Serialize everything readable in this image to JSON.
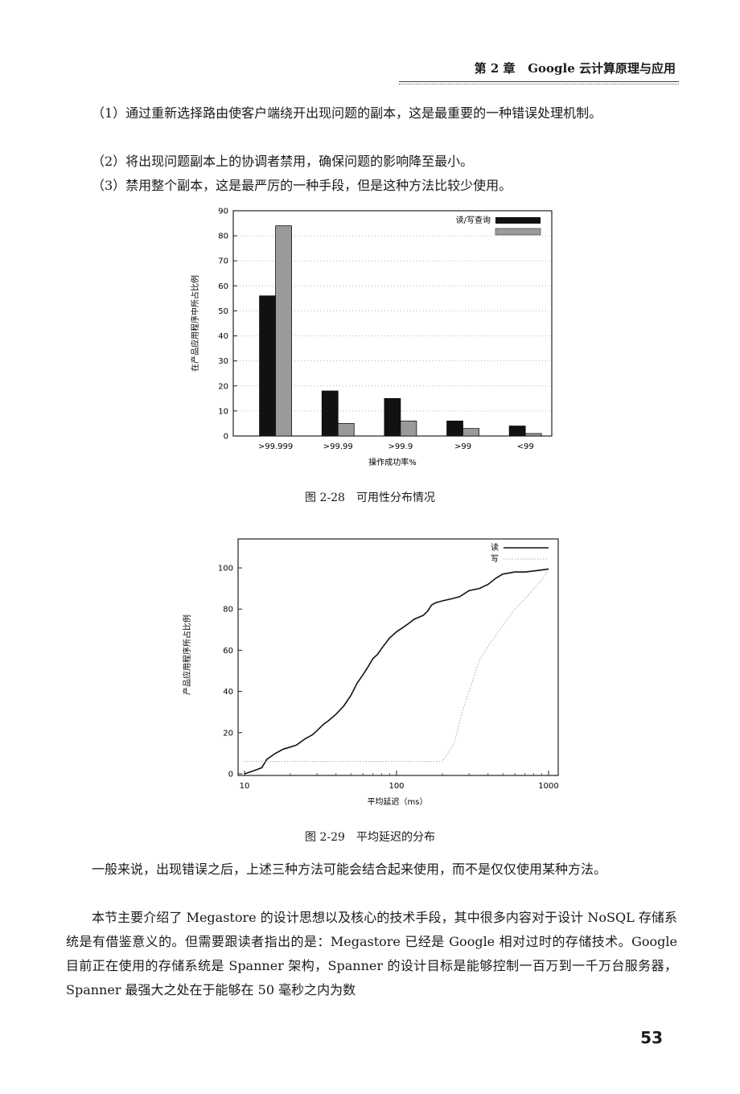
{
  "header": {
    "chapter": "第 2 章",
    "title": "Google 云计算原理与应用"
  },
  "paragraphs_top": [
    "（1）通过重新选择路由使客户端绕开出现问题的副本，这是最重要的一种错误处理机制。",
    "（2）将出现问题副本上的协调者禁用，确保问题的影响降至最小。",
    "（3）禁用整个副本，这是最严厉的一种手段，但是这种方法比较少使用。"
  ],
  "figure1": {
    "caption": "图 2-28　可用性分布情况",
    "legend_label": "读/写查询",
    "ylabel": "在产品应用程序中所占比例",
    "xlabel": "操作成功率%"
  },
  "figure2": {
    "caption": "图 2-29　平均延迟的分布",
    "legend_read": "读",
    "legend_write": "写",
    "ylabel": "产品应用程序所占比例",
    "xlabel": "平均延迟（ms）"
  },
  "paragraphs_bottom": [
    "一般来说，出现错误之后，上述三种方法可能会结合起来使用，而不是仅仅使用某种方法。",
    "本节主要介绍了 Megastore 的设计思想以及核心的技术手段，其中很多内容对于设计 NoSQL 存储系统是有借鉴意义的。但需要跟读者指出的是：Megastore 已经是 Google 相对过时的存储技术。Google 目前正在使用的存储系统是 Spanner 架构，Spanner 的设计目标是能够控制一百万到一千万台服务器，Spanner 最强大之处在于能够在 50 毫秒之内为数"
  ],
  "page_number": "53",
  "chart_data": [
    {
      "type": "bar",
      "categories": [
        ">99.999",
        ">99.99",
        ">99.9",
        ">99",
        "<99"
      ],
      "series": [
        {
          "values": [
            56,
            18,
            15,
            6,
            4
          ],
          "color": "#111111"
        },
        {
          "values": [
            84,
            5,
            6,
            3,
            1
          ],
          "color": "#9a9a9a"
        }
      ],
      "legend_label": "读/写查询",
      "ylabel": "在产品应用程序中所占比例",
      "xlabel": "操作成功率%",
      "ylim": [
        0,
        90
      ],
      "yticks": [
        0,
        10,
        20,
        30,
        40,
        50,
        60,
        70,
        80,
        90
      ],
      "legend": "top-right"
    },
    {
      "type": "line",
      "xscale": "log",
      "xlim": [
        10,
        1000
      ],
      "ylim": [
        0,
        100
      ],
      "xticks": [
        10,
        100,
        1000
      ],
      "yticks": [
        0,
        20,
        40,
        60,
        80,
        100
      ],
      "ylabel": "产品应用程序所占比例",
      "xlabel": "平均延迟（ms）",
      "legend": "top-right",
      "series": [
        {
          "name": "读",
          "x": [
            10,
            11,
            12,
            13,
            14,
            16,
            18,
            20,
            22,
            25,
            28,
            30,
            33,
            36,
            40,
            45,
            50,
            55,
            60,
            65,
            70,
            75,
            80,
            90,
            100,
            110,
            120,
            130,
            140,
            150,
            160,
            170,
            180,
            200,
            230,
            260,
            300,
            350,
            400,
            450,
            500,
            600,
            700,
            800,
            900,
            1000
          ],
          "y": [
            0,
            1,
            2,
            3,
            7,
            10,
            12,
            13,
            14,
            17,
            19,
            21,
            24,
            26,
            29,
            33,
            38,
            44,
            48,
            52,
            56,
            58,
            61,
            66,
            69,
            71,
            73,
            75,
            76,
            77,
            79,
            82,
            83,
            84,
            85,
            86,
            89,
            90,
            92,
            95,
            97,
            98,
            98,
            98.5,
            99,
            99.5
          ]
        },
        {
          "name": "写",
          "x": [
            10,
            20,
            50,
            100,
            150,
            200,
            240,
            270,
            300,
            350,
            400,
            500,
            600,
            700,
            800,
            900,
            1000
          ],
          "y": [
            6,
            6,
            6,
            6,
            6,
            6,
            15,
            30,
            40,
            55,
            62,
            72,
            80,
            85,
            90,
            94,
            99
          ]
        }
      ]
    }
  ]
}
